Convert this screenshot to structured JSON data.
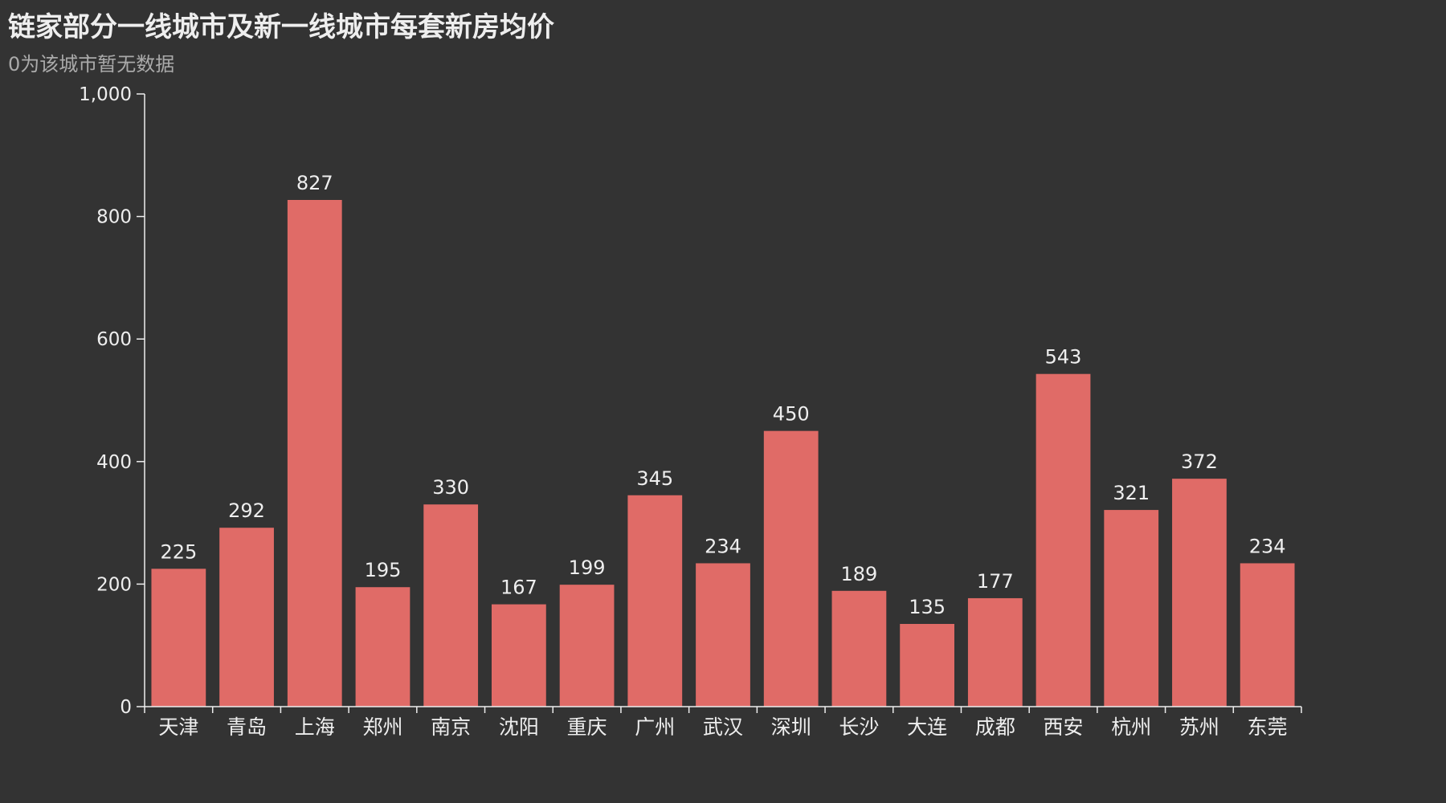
{
  "chart_data": {
    "type": "bar",
    "title": "链家部分一线城市及新一线城市每套新房均价",
    "subtitle": "0为该城市暂无数据",
    "categories": [
      "天津",
      "青岛",
      "上海",
      "郑州",
      "南京",
      "沈阳",
      "重庆",
      "广州",
      "武汉",
      "深圳",
      "长沙",
      "大连",
      "成都",
      "西安",
      "杭州",
      "苏州",
      "东莞"
    ],
    "values": [
      225,
      292,
      827,
      195,
      330,
      167,
      199,
      345,
      234,
      450,
      189,
      135,
      177,
      543,
      321,
      372,
      234
    ],
    "ylim": [
      0,
      1000
    ],
    "yticks": [
      "0",
      "200",
      "400",
      "600",
      "800",
      "1,000"
    ],
    "bar_color": "#e06b67",
    "grid": false,
    "legend": "none"
  }
}
